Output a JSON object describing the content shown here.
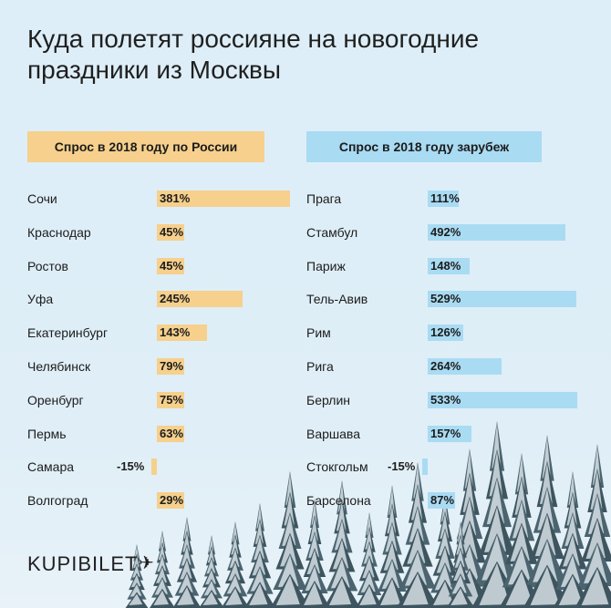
{
  "title": "Куда полетят россияне на новогодние праздники из Москвы",
  "logo": "KUPIBILET",
  "colors": {
    "russia_bar": "#f6d08c",
    "abroad_bar": "#a9dbf3"
  },
  "chart_data": [
    {
      "type": "bar",
      "orientation": "horizontal",
      "title": "Спрос в 2018 году по России",
      "categories": [
        "Сочи",
        "Краснодар",
        "Ростов",
        "Уфа",
        "Екатеринбург",
        "Челябинск",
        "Оренбург",
        "Пермь",
        "Самара",
        "Волгоград"
      ],
      "values": [
        381,
        45,
        45,
        245,
        143,
        79,
        75,
        63,
        -15,
        29
      ],
      "labels": [
        "381%",
        "45%",
        "45%",
        "245%",
        "143%",
        "79%",
        "75%",
        "63%",
        "-15%",
        "29%"
      ],
      "unit": "%"
    },
    {
      "type": "bar",
      "orientation": "horizontal",
      "title": "Спрос в 2018 году зарубеж",
      "categories": [
        "Прага",
        "Стамбул",
        "Париж",
        "Тель-Авив",
        "Рим",
        "Рига",
        "Берлин",
        "Варшава",
        "Стокгольм",
        "Барселона"
      ],
      "values": [
        111,
        492,
        148,
        529,
        126,
        264,
        533,
        157,
        -15,
        87
      ],
      "labels": [
        "111%",
        "492%",
        "148%",
        "529%",
        "126%",
        "264%",
        "533%",
        "157%",
        "-15%",
        "87%"
      ],
      "unit": "%"
    }
  ]
}
